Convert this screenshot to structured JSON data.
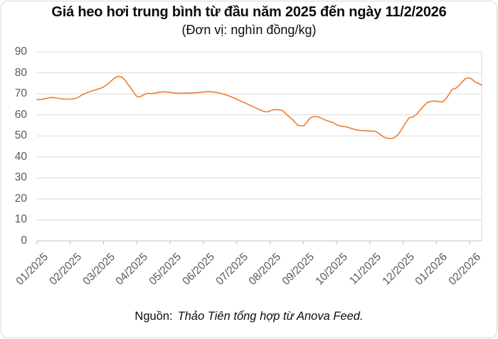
{
  "title": "Giá heo hơi trung bình từ đầu năm 2025 đến ngày 11/2/2026",
  "subtitle": "(Đơn vị: nghìn đồng/kg)",
  "source": {
    "label": "Nguồn:",
    "text": "Thảo Tiên tổng hợp từ Anova Feed."
  },
  "colors": {
    "line": "#ED7D31",
    "gridline": "#D9D9D9",
    "axis": "#BFBFBF",
    "tick_label": "#595959",
    "title": "#0D0D0D",
    "frame": "#D8D8D8"
  },
  "chart_data": {
    "type": "line",
    "title": "Giá heo hơi trung bình từ đầu năm 2025 đến ngày 11/2/2026",
    "subtitle": "(Đơn vị: nghìn đồng/kg)",
    "xlabel": "",
    "ylabel": "nghìn đồng/kg",
    "ylim": [
      0,
      90
    ],
    "y_ticks": [
      0,
      10,
      20,
      30,
      40,
      50,
      60,
      70,
      80,
      90
    ],
    "y_tick_labels": [
      "0",
      "10",
      "20",
      "30",
      "40",
      "50",
      "60",
      "70",
      "80",
      "90"
    ],
    "x_tick_labels": [
      "01/2025",
      "02/2025",
      "03/2025",
      "04/2025",
      "05/2025",
      "06/2025",
      "07/2025",
      "08/2025",
      "09/2025",
      "10/2025",
      "11/2025",
      "12/2025",
      "01/2026",
      "02/2026"
    ],
    "x_unit": "months since 2025-01-01 (fractional)",
    "grid": true,
    "legend": false,
    "series": [
      {
        "name": "Giá heo hơi trung bình (nghìn đồng/kg)",
        "points": [
          [
            0.0,
            67.3
          ],
          [
            0.15,
            67.4
          ],
          [
            0.3,
            67.9
          ],
          [
            0.45,
            68.3
          ],
          [
            0.6,
            68.0
          ],
          [
            0.75,
            67.6
          ],
          [
            0.9,
            67.5
          ],
          [
            1.05,
            67.5
          ],
          [
            1.2,
            68.0
          ],
          [
            1.35,
            69.5
          ],
          [
            1.5,
            70.6
          ],
          [
            1.65,
            71.4
          ],
          [
            1.8,
            72.1
          ],
          [
            1.95,
            72.9
          ],
          [
            2.05,
            73.8
          ],
          [
            2.15,
            75.0
          ],
          [
            2.25,
            76.5
          ],
          [
            2.35,
            77.8
          ],
          [
            2.45,
            78.4
          ],
          [
            2.55,
            78.0
          ],
          [
            2.65,
            76.5
          ],
          [
            2.72,
            74.8
          ],
          [
            2.8,
            73.2
          ],
          [
            2.9,
            70.8
          ],
          [
            3.0,
            68.8
          ],
          [
            3.05,
            68.5
          ],
          [
            3.15,
            69.0
          ],
          [
            3.25,
            69.9
          ],
          [
            3.35,
            70.3
          ],
          [
            3.45,
            70.1
          ],
          [
            3.55,
            70.4
          ],
          [
            3.7,
            70.8
          ],
          [
            3.85,
            71.0
          ],
          [
            4.0,
            70.7
          ],
          [
            4.15,
            70.4
          ],
          [
            4.35,
            70.3
          ],
          [
            4.55,
            70.4
          ],
          [
            4.75,
            70.5
          ],
          [
            4.95,
            70.8
          ],
          [
            5.1,
            71.1
          ],
          [
            5.25,
            71.0
          ],
          [
            5.4,
            70.7
          ],
          [
            5.55,
            70.1
          ],
          [
            5.7,
            69.4
          ],
          [
            5.85,
            68.5
          ],
          [
            6.0,
            67.5
          ],
          [
            6.1,
            66.7
          ],
          [
            6.25,
            65.7
          ],
          [
            6.4,
            64.6
          ],
          [
            6.55,
            63.5
          ],
          [
            6.7,
            62.4
          ],
          [
            6.82,
            61.6
          ],
          [
            6.92,
            61.4
          ],
          [
            7.02,
            62.0
          ],
          [
            7.12,
            62.5
          ],
          [
            7.25,
            62.5
          ],
          [
            7.38,
            62.1
          ],
          [
            7.48,
            60.5
          ],
          [
            7.58,
            59.0
          ],
          [
            7.68,
            57.8
          ],
          [
            7.76,
            56.3
          ],
          [
            7.84,
            55.0
          ],
          [
            7.95,
            54.8
          ],
          [
            8.02,
            54.9
          ],
          [
            8.1,
            56.3
          ],
          [
            8.2,
            58.5
          ],
          [
            8.3,
            59.2
          ],
          [
            8.42,
            59.2
          ],
          [
            8.52,
            58.6
          ],
          [
            8.65,
            57.6
          ],
          [
            8.78,
            56.9
          ],
          [
            8.9,
            56.3
          ],
          [
            9.02,
            55.2
          ],
          [
            9.15,
            54.6
          ],
          [
            9.3,
            54.3
          ],
          [
            9.45,
            53.5
          ],
          [
            9.6,
            52.9
          ],
          [
            9.75,
            52.5
          ],
          [
            9.9,
            52.4
          ],
          [
            10.05,
            52.3
          ],
          [
            10.18,
            52.1
          ],
          [
            10.3,
            50.9
          ],
          [
            10.42,
            49.4
          ],
          [
            10.55,
            48.8
          ],
          [
            10.68,
            48.8
          ],
          [
            10.78,
            49.6
          ],
          [
            10.88,
            51.3
          ],
          [
            10.98,
            53.8
          ],
          [
            11.08,
            56.3
          ],
          [
            11.18,
            58.6
          ],
          [
            11.3,
            59.0
          ],
          [
            11.42,
            60.5
          ],
          [
            11.52,
            62.5
          ],
          [
            11.62,
            64.3
          ],
          [
            11.72,
            65.8
          ],
          [
            11.82,
            66.4
          ],
          [
            11.95,
            66.6
          ],
          [
            12.08,
            66.4
          ],
          [
            12.18,
            66.1
          ],
          [
            12.28,
            67.5
          ],
          [
            12.38,
            69.8
          ],
          [
            12.48,
            72.2
          ],
          [
            12.58,
            72.6
          ],
          [
            12.68,
            74.0
          ],
          [
            12.78,
            75.8
          ],
          [
            12.88,
            77.3
          ],
          [
            12.95,
            77.7
          ],
          [
            13.05,
            77.2
          ],
          [
            13.15,
            75.8
          ],
          [
            13.25,
            75.1
          ],
          [
            13.36,
            74.2
          ]
        ]
      }
    ]
  }
}
